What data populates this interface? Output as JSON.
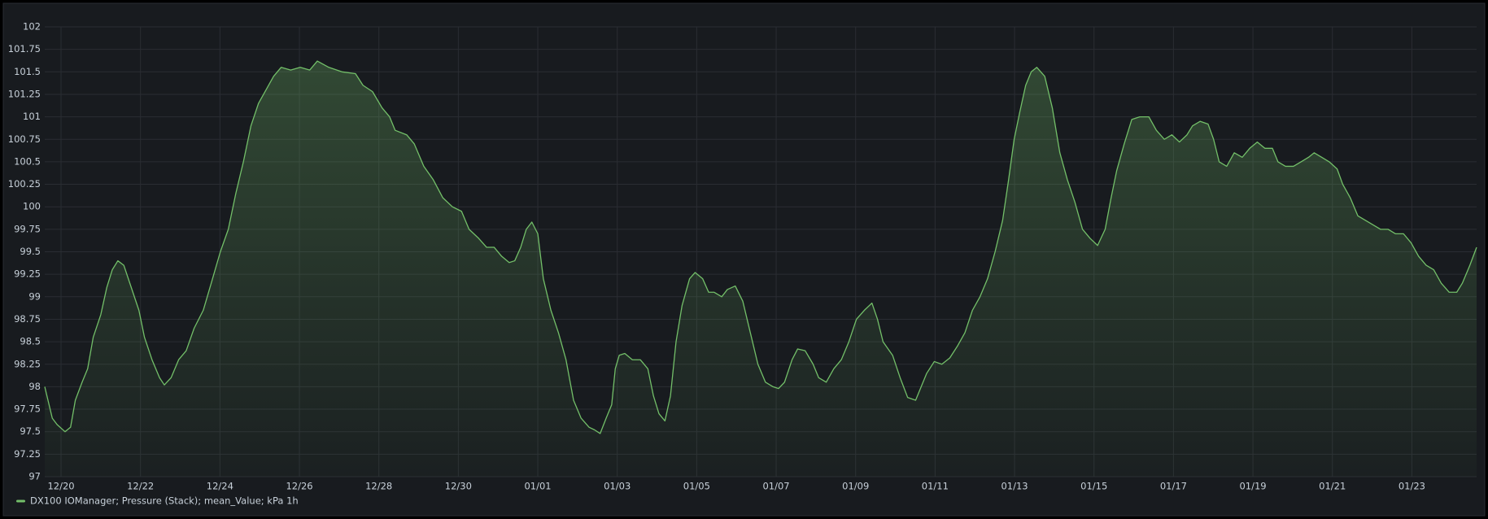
{
  "chart_data": {
    "type": "line",
    "series": [
      {
        "name": "DX100 IOManager; Pressure (Stack); mean_Value; kPa 1h",
        "color": "#73bf69",
        "values": [
          98.0,
          97.65,
          97.58,
          97.5,
          97.55,
          97.85,
          98.05,
          98.2,
          98.55,
          98.8,
          99.1,
          99.3,
          99.4,
          99.35,
          99.1,
          98.85,
          98.55,
          98.3,
          98.1,
          98.02,
          98.1,
          98.3,
          98.4,
          98.65,
          98.85,
          99.15,
          99.5,
          99.75,
          100.15,
          100.5,
          100.9,
          101.15,
          101.3,
          101.45,
          101.55,
          101.52,
          101.55,
          101.52,
          101.62,
          101.55,
          101.5,
          101.48,
          101.35,
          101.28,
          101.1,
          101.0,
          100.85,
          100.8,
          100.7,
          100.45,
          100.3,
          100.1,
          100.0,
          99.95,
          99.75,
          99.65,
          99.55,
          99.55,
          99.45,
          99.38,
          99.4,
          99.55,
          99.75,
          99.83,
          99.7,
          99.2,
          98.85,
          98.6,
          98.3,
          97.85,
          97.65,
          97.55,
          97.52,
          97.48,
          97.65,
          97.8,
          98.2,
          98.35,
          98.37,
          98.3,
          98.3,
          98.2,
          97.9,
          97.7,
          97.62,
          97.9,
          98.5,
          98.9,
          99.2,
          99.27,
          99.2,
          99.05,
          99.05,
          99.0,
          99.08,
          99.12,
          98.95,
          98.6,
          98.25,
          98.05,
          98.0,
          97.98,
          98.05,
          98.3,
          98.42,
          98.4,
          98.25,
          98.1,
          98.05,
          98.2,
          98.3,
          98.5,
          98.75,
          98.85,
          98.93,
          98.75,
          98.5,
          98.35,
          98.1,
          97.88,
          97.85,
          98.0,
          98.15,
          98.28,
          98.25,
          98.32,
          98.45,
          98.6,
          98.85,
          99.0,
          99.2,
          99.5,
          99.85,
          100.3,
          100.75,
          101.05,
          101.35,
          101.5,
          101.55,
          101.45,
          101.1,
          100.6,
          100.3,
          100.05,
          99.75,
          99.65,
          99.57,
          99.75,
          100.1,
          100.4,
          100.7,
          100.97,
          101.0,
          101.0,
          100.85,
          100.75,
          100.8,
          100.72,
          100.8,
          100.9,
          100.95,
          100.92,
          100.75,
          100.5,
          100.45,
          100.6,
          100.55,
          100.65,
          100.72,
          100.65,
          100.65,
          100.5,
          100.45,
          100.45,
          100.5,
          100.55,
          100.6,
          100.55,
          100.5,
          100.42,
          100.25,
          100.1,
          99.9,
          99.85,
          99.8,
          99.75,
          99.75,
          99.7,
          99.7,
          99.6,
          99.45,
          99.35,
          99.3,
          99.15,
          99.05,
          99.05,
          99.15,
          99.35,
          99.55
        ]
      }
    ],
    "x": [
      -0.41,
      -0.22,
      -0.1,
      0.1,
      0.24,
      0.36,
      0.53,
      0.67,
      0.81,
      1.0,
      1.15,
      1.29,
      1.43,
      1.58,
      1.77,
      1.96,
      2.1,
      2.29,
      2.48,
      2.6,
      2.77,
      2.96,
      3.15,
      3.35,
      3.58,
      3.78,
      4.01,
      4.21,
      4.4,
      4.59,
      4.78,
      4.97,
      5.16,
      5.35,
      5.54,
      5.78,
      6.02,
      6.26,
      6.45,
      6.74,
      7.07,
      7.41,
      7.6,
      7.84,
      8.08,
      8.27,
      8.41,
      8.7,
      8.89,
      9.13,
      9.37,
      9.61,
      9.85,
      10.08,
      10.27,
      10.51,
      10.71,
      10.9,
      11.09,
      11.28,
      11.42,
      11.57,
      11.71,
      11.85,
      12.0,
      12.14,
      12.33,
      12.52,
      12.71,
      12.9,
      13.09,
      13.29,
      13.43,
      13.57,
      13.72,
      13.86,
      13.95,
      14.05,
      14.19,
      14.38,
      14.58,
      14.77,
      14.91,
      15.05,
      15.2,
      15.34,
      15.48,
      15.63,
      15.82,
      15.96,
      16.15,
      16.3,
      16.44,
      16.63,
      16.77,
      16.97,
      17.16,
      17.35,
      17.54,
      17.73,
      17.92,
      18.06,
      18.21,
      18.4,
      18.54,
      18.73,
      18.93,
      19.07,
      19.26,
      19.45,
      19.64,
      19.83,
      20.02,
      20.22,
      20.41,
      20.55,
      20.69,
      20.93,
      21.12,
      21.31,
      21.51,
      21.65,
      21.79,
      21.98,
      22.17,
      22.37,
      22.56,
      22.75,
      22.94,
      23.13,
      23.32,
      23.51,
      23.7,
      23.85,
      23.99,
      24.13,
      24.28,
      24.42,
      24.56,
      24.76,
      24.95,
      25.14,
      25.33,
      25.52,
      25.71,
      25.9,
      26.09,
      26.28,
      26.43,
      26.57,
      26.76,
      26.95,
      27.15,
      27.38,
      27.57,
      27.77,
      27.96,
      28.15,
      28.34,
      28.48,
      28.67,
      28.87,
      29.01,
      29.15,
      29.34,
      29.53,
      29.73,
      29.92,
      30.11,
      30.3,
      30.49,
      30.63,
      30.82,
      31.02,
      31.21,
      31.4,
      31.54,
      31.73,
      31.92,
      32.12,
      32.26,
      32.45,
      32.64,
      32.83,
      33.02,
      33.21,
      33.4,
      33.59,
      33.79,
      33.98,
      34.17,
      34.36,
      34.55,
      34.74,
      34.94,
      35.13,
      35.27,
      35.46,
      35.63
    ],
    "xlim": [
      -0.41,
      35.63
    ],
    "xticks": [
      {
        "value": 0,
        "label": "12/20"
      },
      {
        "value": 2,
        "label": "12/22"
      },
      {
        "value": 4,
        "label": "12/24"
      },
      {
        "value": 6,
        "label": "12/26"
      },
      {
        "value": 8,
        "label": "12/28"
      },
      {
        "value": 10,
        "label": "12/30"
      },
      {
        "value": 12,
        "label": "01/01"
      },
      {
        "value": 14,
        "label": "01/03"
      },
      {
        "value": 16,
        "label": "01/05"
      },
      {
        "value": 18,
        "label": "01/07"
      },
      {
        "value": 20,
        "label": "01/09"
      },
      {
        "value": 22,
        "label": "01/11"
      },
      {
        "value": 24,
        "label": "01/13"
      },
      {
        "value": 26,
        "label": "01/15"
      },
      {
        "value": 28,
        "label": "01/17"
      },
      {
        "value": 30,
        "label": "01/19"
      },
      {
        "value": 32,
        "label": "01/21"
      },
      {
        "value": 34,
        "label": "01/23"
      }
    ],
    "ylim": [
      97,
      102
    ],
    "yticks": [
      97,
      97.25,
      97.5,
      97.75,
      98,
      98.25,
      98.5,
      98.75,
      99,
      99.25,
      99.5,
      99.75,
      100,
      100.25,
      100.5,
      100.75,
      101,
      101.25,
      101.5,
      101.75,
      102
    ],
    "grid": true,
    "legend": "bottom-left"
  }
}
